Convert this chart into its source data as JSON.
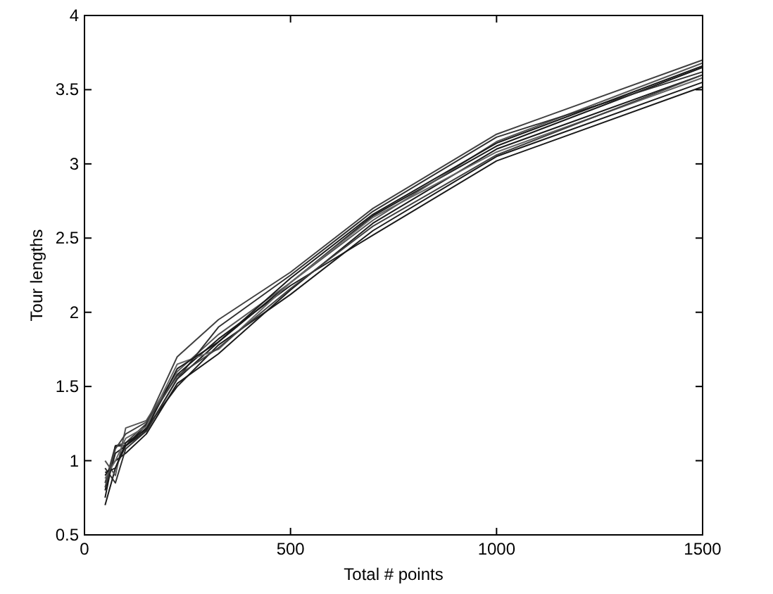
{
  "chart_data": {
    "type": "line",
    "xlabel": "Total # points",
    "ylabel": "Tour lengths",
    "x": [
      50,
      75,
      100,
      150,
      225,
      325,
      500,
      700,
      1000,
      1500
    ],
    "xlim": [
      0,
      1500
    ],
    "xticks": [
      0,
      500,
      1000,
      1500
    ],
    "ylim": [
      0.5,
      4
    ],
    "yticks": [
      0.5,
      1,
      1.5,
      2,
      2.5,
      3,
      3.5,
      4
    ],
    "grid": false,
    "marker": "none",
    "line_style": "solid",
    "series": [
      {
        "color": "#1a1a1a",
        "values": [
          0.7,
          0.95,
          1.1,
          1.2,
          1.55,
          1.8,
          2.2,
          2.65,
          3.12,
          3.65
        ]
      },
      {
        "color": "#404040",
        "values": [
          0.85,
          1.1,
          1.12,
          1.25,
          1.7,
          1.95,
          2.27,
          2.7,
          3.2,
          3.7
        ]
      },
      {
        "color": "#1a1a1a",
        "values": [
          0.9,
          1.0,
          1.05,
          1.18,
          1.52,
          1.72,
          2.15,
          2.6,
          3.1,
          3.6
        ]
      },
      {
        "color": "#555555",
        "values": [
          1.0,
          0.9,
          1.22,
          1.27,
          1.6,
          1.85,
          2.2,
          2.62,
          3.15,
          3.68
        ]
      },
      {
        "color": "#1a1a1a",
        "values": [
          0.8,
          1.05,
          1.1,
          1.22,
          1.5,
          1.78,
          2.12,
          2.55,
          3.05,
          3.55
        ]
      },
      {
        "color": "#303030",
        "values": [
          0.95,
          0.85,
          1.08,
          1.2,
          1.55,
          1.9,
          2.25,
          2.68,
          3.18,
          3.62
        ]
      },
      {
        "color": "#1a1a1a",
        "values": [
          0.75,
          1.1,
          1.1,
          1.24,
          1.58,
          1.82,
          2.18,
          2.52,
          3.02,
          3.52
        ]
      },
      {
        "color": "#666666",
        "values": [
          0.88,
          1.0,
          1.15,
          1.23,
          1.65,
          1.75,
          2.2,
          2.64,
          3.08,
          3.58
        ]
      },
      {
        "color": "#1a1a1a",
        "values": [
          0.92,
          0.95,
          1.12,
          1.21,
          1.62,
          1.8,
          2.23,
          2.66,
          3.14,
          3.66
        ]
      },
      {
        "color": "#404040",
        "values": [
          0.82,
          1.08,
          1.18,
          1.26,
          1.57,
          1.76,
          2.16,
          2.58,
          3.06,
          3.6
        ]
      }
    ]
  }
}
